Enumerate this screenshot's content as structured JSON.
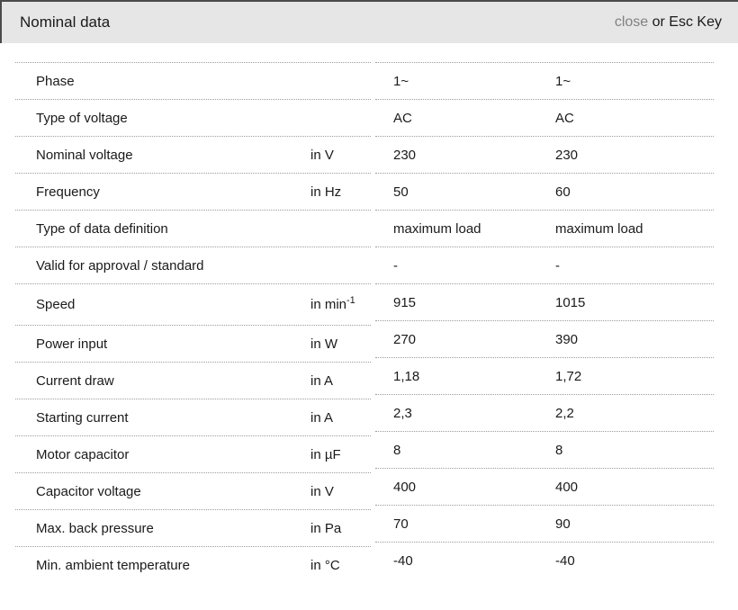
{
  "header": {
    "title": "Nominal data",
    "close_label": "close",
    "close_suffix": " or Esc Key"
  },
  "colors": {
    "header_background": "#e6e6e6",
    "header_top_border": "#4b4b4b",
    "close_link_text": "#808080",
    "body_text": "#1a1a1a",
    "row_divider_dotted": "#9c9c9c"
  },
  "table": {
    "rows": [
      {
        "label": "Phase",
        "unit": "",
        "unit_sup": "",
        "values": [
          "1~",
          "1~"
        ]
      },
      {
        "label": "Type of voltage",
        "unit": "",
        "unit_sup": "",
        "values": [
          "AC",
          "AC"
        ]
      },
      {
        "label": "Nominal voltage",
        "unit": "in V",
        "unit_sup": "",
        "values": [
          "230",
          "230"
        ]
      },
      {
        "label": "Frequency",
        "unit": "in Hz",
        "unit_sup": "",
        "values": [
          "50",
          "60"
        ]
      },
      {
        "label": "Type of data definition",
        "unit": "",
        "unit_sup": "",
        "values": [
          "maximum load",
          "maximum load"
        ]
      },
      {
        "label": "Valid for approval / standard",
        "unit": "",
        "unit_sup": "",
        "values": [
          "-",
          "-"
        ]
      },
      {
        "label": "Speed",
        "unit": "in min",
        "unit_sup": "-1",
        "values": [
          "915",
          "1015"
        ]
      },
      {
        "label": "Power input",
        "unit": "in W",
        "unit_sup": "",
        "values": [
          "270",
          "390"
        ]
      },
      {
        "label": "Current draw",
        "unit": "in A",
        "unit_sup": "",
        "values": [
          "1,18",
          "1,72"
        ]
      },
      {
        "label": "Starting current",
        "unit": "in A",
        "unit_sup": "",
        "values": [
          "2,3",
          "2,2"
        ]
      },
      {
        "label": "Motor capacitor",
        "unit": "in µF",
        "unit_sup": "",
        "values": [
          "8",
          "8"
        ]
      },
      {
        "label": "Capacitor voltage",
        "unit": "in V",
        "unit_sup": "",
        "values": [
          "400",
          "400"
        ]
      },
      {
        "label": "Max. back pressure",
        "unit": "in Pa",
        "unit_sup": "",
        "values": [
          "70",
          "90"
        ]
      },
      {
        "label": "Min. ambient temperature",
        "unit": "in °C",
        "unit_sup": "",
        "values": [
          "-40",
          "-40"
        ]
      }
    ]
  }
}
